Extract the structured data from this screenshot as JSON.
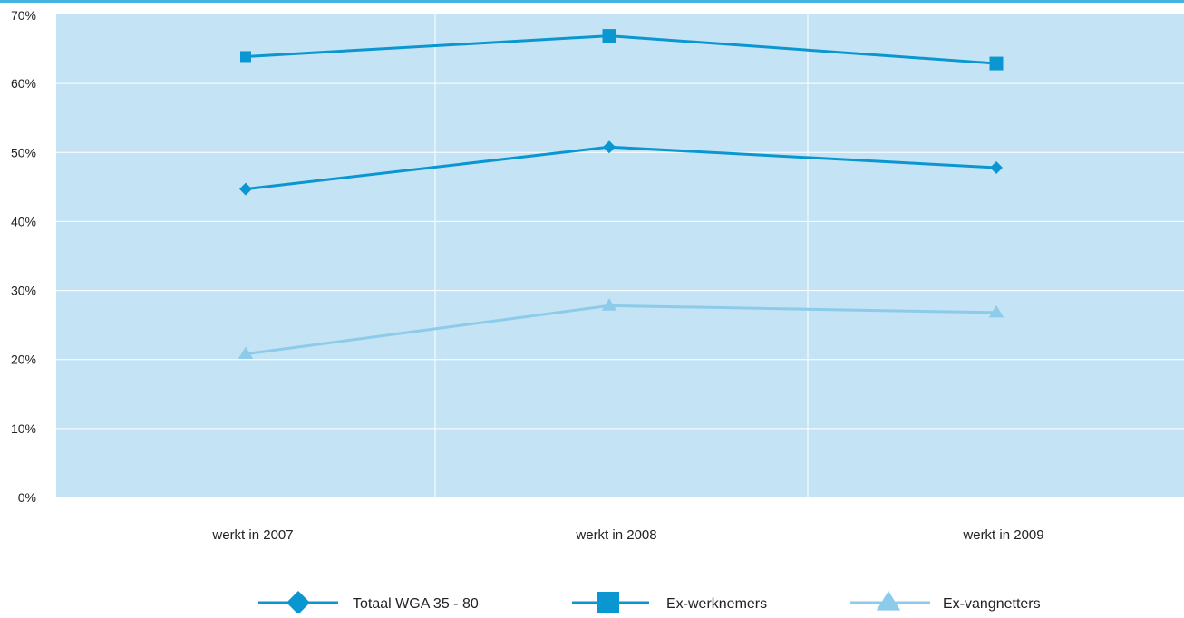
{
  "chart_data": {
    "type": "line",
    "categories": [
      "werkt in 2007",
      "werkt in 2008",
      "werkt in 2009"
    ],
    "series": [
      {
        "name": "Totaal WGA 35 - 80",
        "values": [
          44.7,
          50.8,
          47.8
        ],
        "color": "#0a97d1",
        "marker": "diamond"
      },
      {
        "name": "Ex-werknemers",
        "values": [
          63.9,
          66.9,
          62.9
        ],
        "color": "#0a97d1",
        "marker": "square"
      },
      {
        "name": "Ex-vangnetters",
        "values": [
          20.8,
          27.8,
          26.8
        ],
        "color": "#8ccbe9",
        "marker": "triangle"
      }
    ],
    "yticks": [
      "0%",
      "10%",
      "20%",
      "30%",
      "40%",
      "50%",
      "60%",
      "70%"
    ],
    "ylim": [
      0,
      70
    ],
    "grid": true,
    "legend_position": "bottom",
    "colors": {
      "plot_background": "#c4e3f4",
      "gridline": "#ffffff",
      "top_rule": "#45b3e1"
    }
  }
}
